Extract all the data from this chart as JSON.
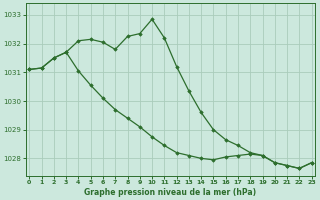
{
  "title": "Graphe pression niveau de la mer (hPa)",
  "bg_color": "#cce8dd",
  "grid_color": "#aaccbb",
  "line_color": "#2d6e2d",
  "marker_color": "#2d6e2d",
  "ylim": [
    1027.4,
    1033.4
  ],
  "yticks": [
    1028,
    1029,
    1030,
    1031,
    1032,
    1033
  ],
  "xlim": [
    -0.3,
    23.3
  ],
  "xticks": [
    0,
    1,
    2,
    3,
    4,
    5,
    6,
    7,
    8,
    9,
    10,
    11,
    12,
    13,
    14,
    15,
    16,
    17,
    18,
    19,
    20,
    21,
    22,
    23
  ],
  "series1_x": [
    0,
    1,
    2,
    3,
    4,
    5,
    6,
    7,
    8,
    9,
    10,
    11,
    12,
    13,
    14,
    15,
    16,
    17,
    18,
    19,
    20,
    21,
    22,
    23
  ],
  "series1_y": [
    1031.1,
    1031.15,
    1031.5,
    1031.7,
    1032.1,
    1032.15,
    1032.05,
    1031.8,
    1032.25,
    1032.35,
    1032.85,
    1032.2,
    1031.2,
    1030.35,
    1029.6,
    1029.0,
    1028.65,
    1028.45,
    1028.2,
    1028.1,
    1027.85,
    1027.75,
    1027.65,
    1027.85
  ],
  "series2_x": [
    0,
    1,
    2,
    3,
    4,
    5,
    6,
    7,
    8,
    9,
    10,
    11,
    12,
    13,
    14,
    15,
    16,
    17,
    18,
    19,
    20,
    21,
    22,
    23
  ],
  "series2_y": [
    1031.1,
    1031.15,
    1031.5,
    1031.7,
    1031.05,
    1030.55,
    1030.1,
    1029.7,
    1029.4,
    1029.1,
    1028.75,
    1028.45,
    1028.2,
    1028.1,
    1028.0,
    1027.95,
    1028.05,
    1028.1,
    1028.15,
    1028.1,
    1027.85,
    1027.75,
    1027.65,
    1027.85
  ]
}
